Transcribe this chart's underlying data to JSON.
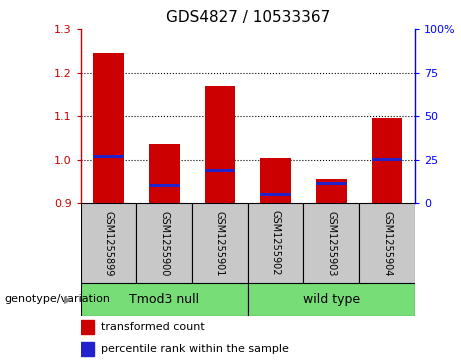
{
  "title": "GDS4827 / 10533367",
  "samples": [
    "GSM1255899",
    "GSM1255900",
    "GSM1255901",
    "GSM1255902",
    "GSM1255903",
    "GSM1255904"
  ],
  "red_top": [
    1.245,
    1.035,
    1.17,
    1.005,
    0.955,
    1.095
  ],
  "red_bottom": [
    0.9,
    0.9,
    0.9,
    0.9,
    0.9,
    0.9
  ],
  "blue_val": [
    1.007,
    0.94,
    0.975,
    0.92,
    0.945,
    1.0
  ],
  "ylim": [
    0.9,
    1.3
  ],
  "yticks": [
    0.9,
    1.0,
    1.1,
    1.2,
    1.3
  ],
  "right_yticks": [
    0,
    25,
    50,
    75,
    100
  ],
  "right_ytick_labels": [
    "0",
    "25",
    "50",
    "75",
    "100%"
  ],
  "group1_label": "Tmod3 null",
  "group2_label": "wild type",
  "group_color": "#77DD77",
  "bar_width": 0.55,
  "red_color": "#CC0000",
  "blue_color": "#2222CC",
  "bg_color": "#C8C8C8",
  "legend_red": "transformed count",
  "legend_blue": "percentile rank within the sample",
  "genotype_label": "genotype/variation",
  "title_fontsize": 11,
  "tick_fontsize": 8,
  "sample_fontsize": 7,
  "legend_fontsize": 8,
  "dotline_color": "black",
  "spine_color": "black"
}
